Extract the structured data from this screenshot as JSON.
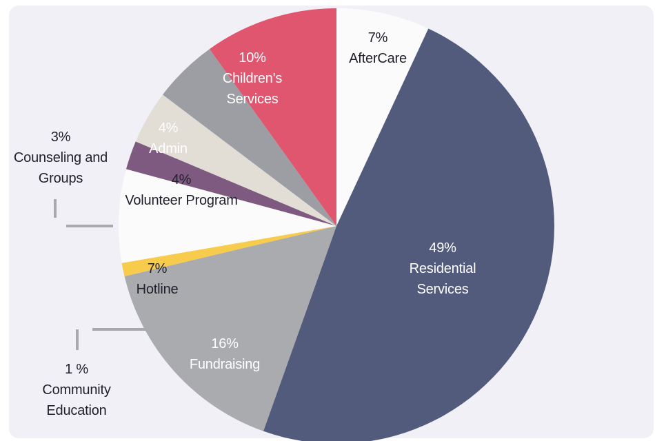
{
  "colors": {
    "background": "#ffffff",
    "panel": "#f1f0f6",
    "leader_line": "#a9a9ad"
  },
  "chart_data": {
    "type": "pie",
    "title": "",
    "slices": [
      {
        "percent_label": "7%",
        "name_lines": [
          "AfterCare"
        ],
        "value": 7,
        "color": "#fbfbfb",
        "text_color": "#1f1f2b"
      },
      {
        "percent_label": "49%",
        "name_lines": [
          "Residential",
          "Services"
        ],
        "value": 49,
        "color": "#525b7c",
        "text_color": "#ffffff"
      },
      {
        "percent_label": "16%",
        "name_lines": [
          "Fundraising"
        ],
        "value": 16,
        "color": "#aaabaf",
        "text_color": "#ffffff"
      },
      {
        "percent_label": "1 %",
        "name_lines": [
          "Community",
          "Education"
        ],
        "value": 1,
        "color": "#f7cb4c",
        "text_color": "#1f1f2b"
      },
      {
        "percent_label": "7%",
        "name_lines": [
          "Hotline"
        ],
        "value": 7,
        "color": "#fbfbfb",
        "text_color": "#1f1f2b"
      },
      {
        "percent_label": "3%",
        "name_lines": [
          "Counseling and",
          "Groups"
        ],
        "value": 3,
        "color": "#7e5a80",
        "text_color": "#1f1f2b"
      },
      {
        "percent_label": "4%",
        "name_lines": [
          "Volunteer Program"
        ],
        "value": 4,
        "color": "#e2ddd5",
        "text_color": "#1f1f2b"
      },
      {
        "percent_label": "4%",
        "name_lines": [
          "Admin"
        ],
        "value": 4,
        "color": "#9d9ea3",
        "text_color": "#ffffff"
      },
      {
        "percent_label": "10%",
        "name_lines": [
          "Children's",
          "Services"
        ],
        "value": 10,
        "color": "#e0566e",
        "text_color": "#ffffff"
      }
    ]
  }
}
